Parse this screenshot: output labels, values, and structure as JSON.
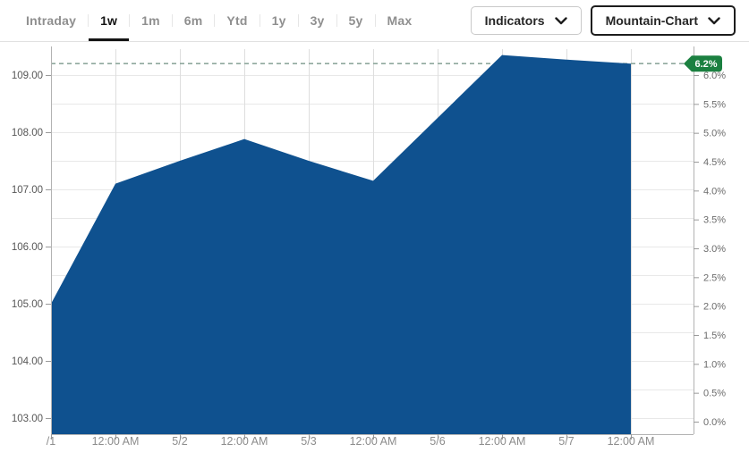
{
  "toolbar": {
    "tabs": [
      {
        "label": "Intraday",
        "active": false
      },
      {
        "label": "1w",
        "active": true
      },
      {
        "label": "1m",
        "active": false
      },
      {
        "label": "6m",
        "active": false
      },
      {
        "label": "Ytd",
        "active": false
      },
      {
        "label": "1y",
        "active": false
      },
      {
        "label": "3y",
        "active": false
      },
      {
        "label": "5y",
        "active": false
      },
      {
        "label": "Max",
        "active": false
      }
    ],
    "indicators_button": {
      "label": "Indicators",
      "icon": "chevron-down"
    },
    "chart_type_button": {
      "label": "Mountain-Chart",
      "icon": "chevron-down"
    }
  },
  "chart_data": {
    "type": "area",
    "x": [
      "/1",
      "12:00 AM",
      "5/2",
      "12:00 AM",
      "5/3",
      "12:00 AM",
      "5/6",
      "12:00 AM",
      "5/7",
      "12:00 AM"
    ],
    "values": [
      105.0,
      107.1,
      107.5,
      107.88,
      107.5,
      107.15,
      108.25,
      109.35,
      109.27,
      109.2
    ],
    "series_name": "price",
    "price_axis": {
      "labels": [
        "109.00",
        "108.00",
        "107.00",
        "106.00",
        "105.00",
        "104.00",
        "103.00"
      ],
      "grid_step": 0.5
    },
    "percent_axis": {
      "labels": [
        "6.0%",
        "5.5%",
        "5.0%",
        "4.5%",
        "4.0%",
        "3.5%",
        "3.0%",
        "2.5%",
        "2.0%",
        "1.5%",
        "1.0%",
        "0.5%",
        "0.0%"
      ]
    },
    "current_value": 109.2,
    "current_change_label": "6.2%",
    "grid": true,
    "legend": "none",
    "colors": {
      "area_fill": "#0f518f",
      "dashed_line": "#8fa89d",
      "badge_fill": "#1b8040",
      "badge_text": "#ffffff",
      "grid_h": "#e8e8e8",
      "grid_v": "#dedede",
      "axis_line": "#b3b3b3",
      "tick": "#9a9a9a"
    }
  }
}
